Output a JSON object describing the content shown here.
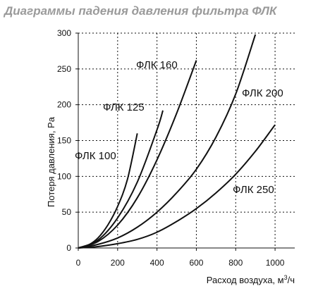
{
  "chart_data": {
    "type": "line",
    "title": "Диаграммы падения давления фильтра ФЛК",
    "xlabel": "Расход воздуха, м",
    "xlabel_sup": "3",
    "xlabel_tail": "/ч",
    "ylabel": "Потеря давления, Pa",
    "xlim": [
      0,
      1100
    ],
    "ylim": [
      0,
      300
    ],
    "x_ticks": [
      0,
      200,
      400,
      600,
      800,
      1000
    ],
    "y_ticks": [
      0,
      50,
      100,
      150,
      200,
      250,
      300
    ],
    "grid": true,
    "series": [
      {
        "name": "ФЛК 100",
        "x": [
          0,
          50,
          100,
          150,
          200,
          250,
          300
        ],
        "y": [
          0,
          4,
          14,
          32,
          58,
          96,
          160
        ]
      },
      {
        "name": "ФЛК 125",
        "x": [
          0,
          100,
          200,
          300,
          400,
          430
        ],
        "y": [
          0,
          11,
          42,
          92,
          165,
          192
        ]
      },
      {
        "name": "ФЛК 160",
        "x": [
          0,
          100,
          200,
          300,
          400,
          500,
          600
        ],
        "y": [
          0,
          9,
          32,
          70,
          123,
          188,
          262
        ]
      },
      {
        "name": "ФЛК 200",
        "x": [
          0,
          100,
          200,
          300,
          400,
          500,
          600,
          700,
          800,
          900
        ],
        "y": [
          0,
          5,
          14,
          29,
          50,
          77,
          110,
          155,
          215,
          298
        ]
      },
      {
        "name": "ФЛК 250",
        "x": [
          0,
          100,
          200,
          300,
          400,
          500,
          600,
          700,
          800,
          900,
          1000
        ],
        "y": [
          0,
          2,
          6,
          12,
          22,
          37,
          55,
          77,
          103,
          135,
          172
        ]
      }
    ]
  }
}
